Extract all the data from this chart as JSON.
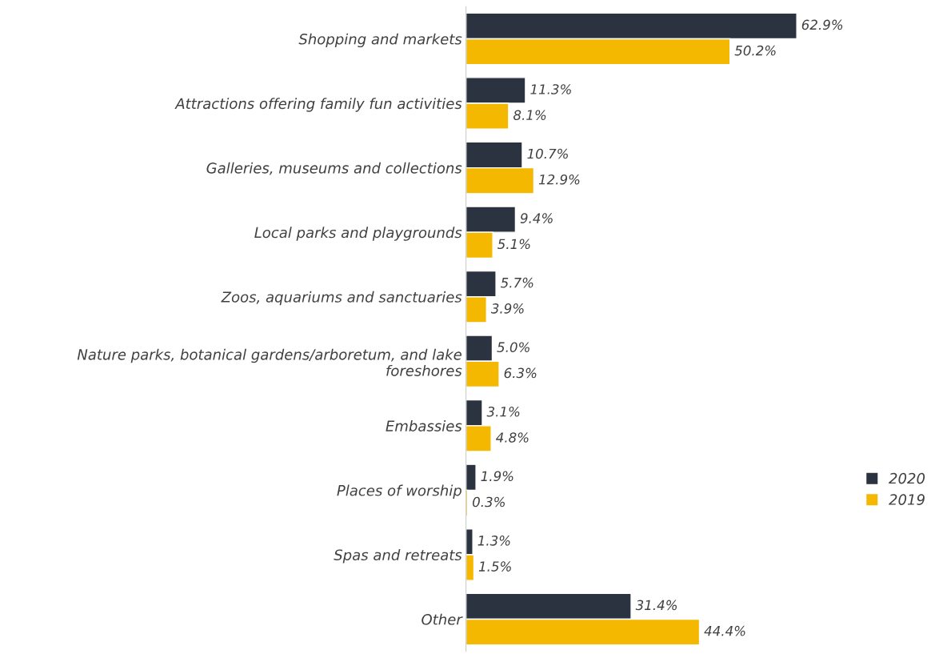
{
  "chart_data": {
    "type": "bar",
    "orientation": "horizontal",
    "legend": "right",
    "grid": false,
    "categories": [
      "Shopping and markets",
      "Attractions offering family fun activities",
      "Galleries, museums and collections",
      "Local parks and playgrounds",
      "Zoos, aquariums and sanctuaries",
      "Nature parks, botanical gardens/arboretum, and lake foreshores",
      "Embassies",
      "Places of worship",
      "Spas and retreats",
      "Other"
    ],
    "series": [
      {
        "name": "2020",
        "color": "#2b3240",
        "values": [
          62.9,
          11.3,
          10.7,
          9.4,
          5.7,
          5.0,
          3.1,
          1.9,
          1.3,
          31.4
        ],
        "value_labels": [
          "62.9%",
          "11.3%",
          "10.7%",
          "9.4%",
          "5.7%",
          "5.0%",
          "3.1%",
          "1.9%",
          "1.3%",
          "31.4%"
        ]
      },
      {
        "name": "2019",
        "color": "#f5b800",
        "values": [
          50.2,
          8.1,
          12.9,
          5.1,
          3.9,
          6.3,
          4.8,
          0.3,
          1.5,
          44.4
        ],
        "value_labels": [
          "50.2%",
          "8.1%",
          "12.9%",
          "5.1%",
          "3.9%",
          "6.3%",
          "4.8%",
          "0.3%",
          "1.5%",
          "44.4%"
        ]
      }
    ]
  }
}
